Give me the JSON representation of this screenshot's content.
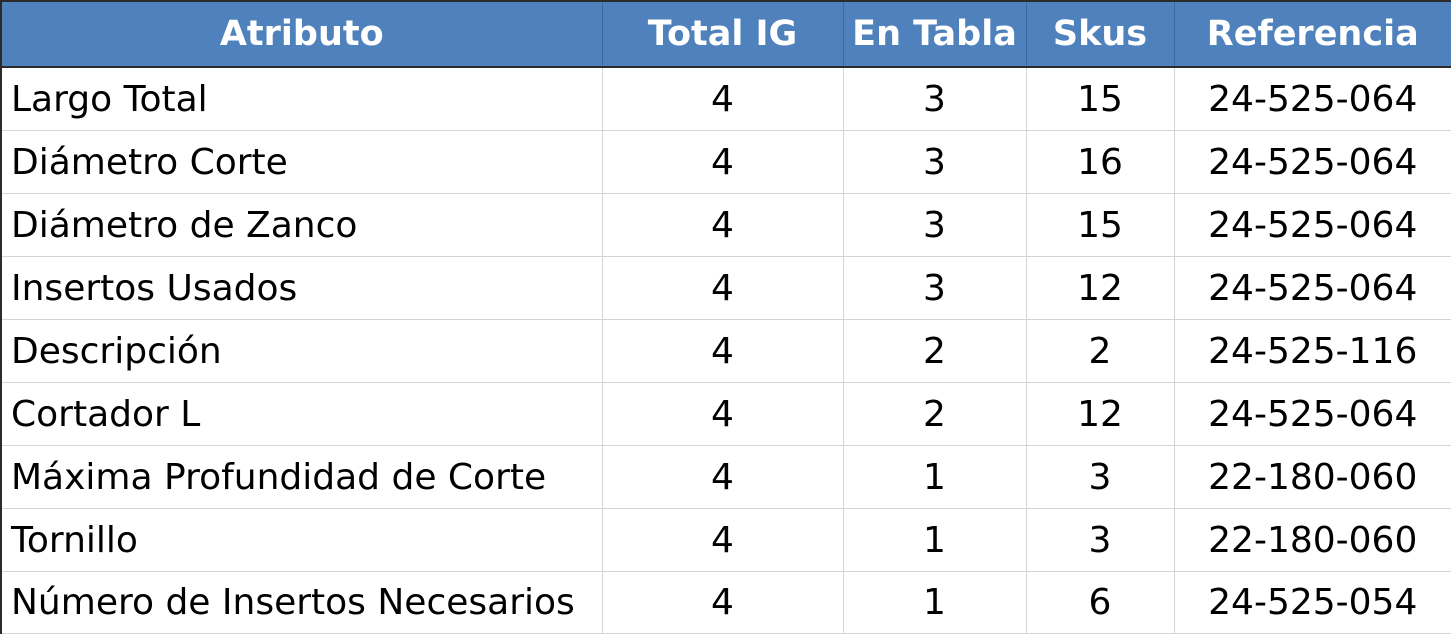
{
  "table": {
    "headers": {
      "attribute": "Atributo",
      "total_ig": "Total IG",
      "en_tabla": "En Tabla",
      "skus": "Skus",
      "referencia": "Referencia"
    },
    "rows": [
      {
        "attribute": "Largo Total",
        "total_ig": "4",
        "en_tabla": "3",
        "skus": "15",
        "referencia": "24-525-064"
      },
      {
        "attribute": "Diámetro Corte",
        "total_ig": "4",
        "en_tabla": "3",
        "skus": "16",
        "referencia": "24-525-064"
      },
      {
        "attribute": "Diámetro de Zanco",
        "total_ig": "4",
        "en_tabla": "3",
        "skus": "15",
        "referencia": "24-525-064"
      },
      {
        "attribute": "Insertos Usados",
        "total_ig": "4",
        "en_tabla": "3",
        "skus": "12",
        "referencia": "24-525-064"
      },
      {
        "attribute": "Descripción",
        "total_ig": "4",
        "en_tabla": "2",
        "skus": "2",
        "referencia": "24-525-116"
      },
      {
        "attribute": "Cortador L",
        "total_ig": "4",
        "en_tabla": "2",
        "skus": "12",
        "referencia": "24-525-064"
      },
      {
        "attribute": "Máxima Profundidad de Corte",
        "total_ig": "4",
        "en_tabla": "1",
        "skus": "3",
        "referencia": "22-180-060"
      },
      {
        "attribute": "Tornillo",
        "total_ig": "4",
        "en_tabla": "1",
        "skus": "3",
        "referencia": "22-180-060"
      },
      {
        "attribute": "Número de Insertos Necesarios",
        "total_ig": "4",
        "en_tabla": "1",
        "skus": "6",
        "referencia": "24-525-054"
      }
    ]
  },
  "colors": {
    "header_background": "#4f81bd",
    "header_text": "#ffffff",
    "grid_line": "#d4d4d4"
  }
}
